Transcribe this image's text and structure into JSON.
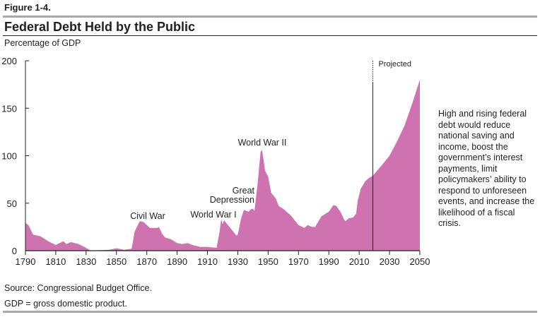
{
  "figure_label": "Figure 1-4.",
  "chart_data": {
    "type": "area",
    "title": "Federal Debt Held by the Public",
    "ylabel": "Percentage of GDP",
    "xlabel": "",
    "xlim": [
      1790,
      2050
    ],
    "ylim": [
      0,
      200
    ],
    "xticks": [
      1790,
      1810,
      1830,
      1850,
      1870,
      1890,
      1910,
      1930,
      1950,
      1970,
      1990,
      2010,
      2030,
      2050
    ],
    "yticks": [
      0,
      50,
      100,
      150,
      200
    ],
    "grid": false,
    "color": "#cf73b0",
    "projection_start": 2019,
    "projection_label": "Projected",
    "annotations": [
      {
        "text": "Civil War",
        "year": 1866
      },
      {
        "text": "World War I",
        "year": 1919
      },
      {
        "text": "Great",
        "year": 1933
      },
      {
        "text": "Depression",
        "year": 1933
      },
      {
        "text": "World War II",
        "year": 1946
      }
    ],
    "points": [
      [
        1790,
        29
      ],
      [
        1792,
        27
      ],
      [
        1795,
        17
      ],
      [
        1800,
        15
      ],
      [
        1802,
        13
      ],
      [
        1805,
        10
      ],
      [
        1810,
        6
      ],
      [
        1815,
        10
      ],
      [
        1817,
        7
      ],
      [
        1820,
        9
      ],
      [
        1825,
        7
      ],
      [
        1830,
        3
      ],
      [
        1833,
        0
      ],
      [
        1840,
        0.5
      ],
      [
        1845,
        1
      ],
      [
        1850,
        2.5
      ],
      [
        1855,
        1
      ],
      [
        1860,
        2
      ],
      [
        1862,
        20
      ],
      [
        1865,
        30
      ],
      [
        1866,
        31
      ],
      [
        1868,
        30
      ],
      [
        1872,
        24
      ],
      [
        1877,
        24
      ],
      [
        1878,
        25
      ],
      [
        1880,
        18
      ],
      [
        1882,
        14
      ],
      [
        1886,
        12
      ],
      [
        1890,
        8
      ],
      [
        1893,
        7
      ],
      [
        1897,
        8
      ],
      [
        1900,
        6
      ],
      [
        1905,
        4
      ],
      [
        1910,
        4
      ],
      [
        1916,
        3
      ],
      [
        1918,
        20
      ],
      [
        1919,
        33
      ],
      [
        1920,
        28
      ],
      [
        1921,
        32
      ],
      [
        1923,
        28
      ],
      [
        1926,
        22
      ],
      [
        1929,
        16
      ],
      [
        1930,
        17
      ],
      [
        1932,
        33
      ],
      [
        1934,
        43
      ],
      [
        1937,
        41
      ],
      [
        1939,
        44
      ],
      [
        1940,
        44
      ],
      [
        1941,
        42
      ],
      [
        1943,
        70
      ],
      [
        1945,
        104
      ],
      [
        1946,
        106
      ],
      [
        1948,
        84
      ],
      [
        1950,
        78
      ],
      [
        1952,
        61
      ],
      [
        1955,
        55
      ],
      [
        1957,
        47
      ],
      [
        1960,
        44
      ],
      [
        1965,
        37
      ],
      [
        1970,
        27
      ],
      [
        1974,
        24
      ],
      [
        1976,
        27
      ],
      [
        1979,
        25
      ],
      [
        1981,
        25
      ],
      [
        1985,
        36
      ],
      [
        1988,
        39
      ],
      [
        1990,
        41
      ],
      [
        1993,
        48
      ],
      [
        1995,
        47
      ],
      [
        1998,
        40
      ],
      [
        2000,
        33
      ],
      [
        2001,
        31
      ],
      [
        2003,
        34
      ],
      [
        2006,
        35
      ],
      [
        2008,
        39
      ],
      [
        2009,
        52
      ],
      [
        2011,
        65
      ],
      [
        2014,
        73
      ],
      [
        2016,
        76
      ],
      [
        2019,
        79
      ],
      [
        2025,
        90
      ],
      [
        2030,
        100
      ],
      [
        2035,
        115
      ],
      [
        2040,
        132
      ],
      [
        2045,
        155
      ],
      [
        2050,
        180
      ]
    ]
  },
  "side_note": "High and rising federal debt would reduce national saving and income, boost the government’s interest payments, limit policymakers’ ability to respond to unforeseen events, and increase the likelihood of a fiscal crisis.",
  "source": "Source: Congressional Budget Office.",
  "footnote": "GDP = gross domestic product."
}
